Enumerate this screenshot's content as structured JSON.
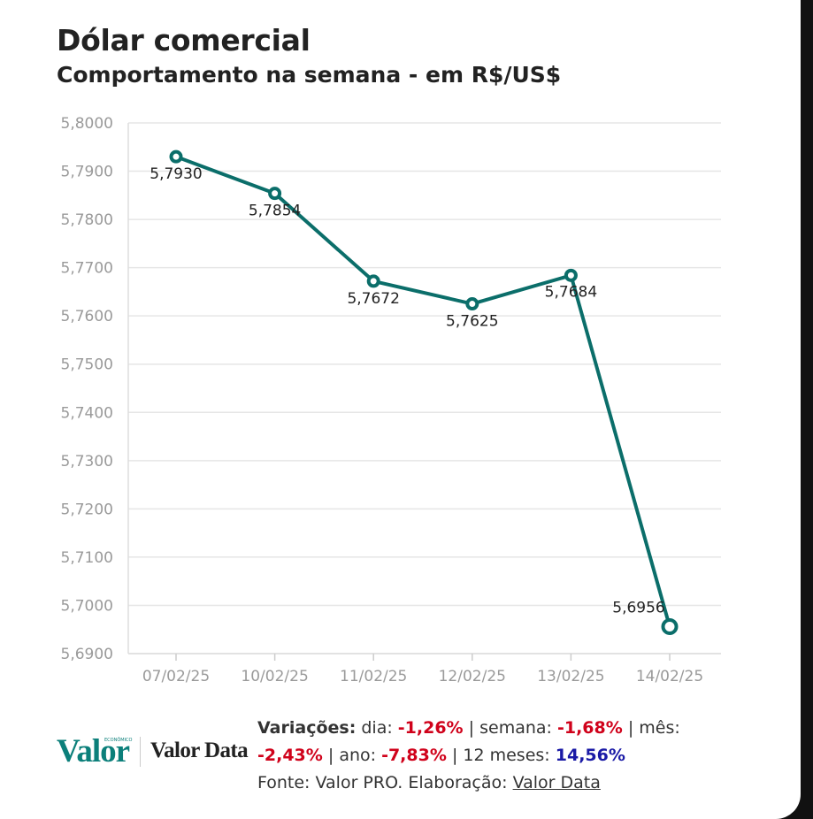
{
  "header": {
    "title": "Dólar comercial",
    "subtitle": "Comportamento na semana - em R$/US$"
  },
  "chart_data": {
    "type": "line",
    "title": "Dólar comercial",
    "subtitle": "Comportamento na semana - em R$/US$",
    "xlabel": "",
    "ylabel": "",
    "categories": [
      "07/02/25",
      "10/02/25",
      "11/02/25",
      "12/02/25",
      "13/02/25",
      "14/02/25"
    ],
    "series": [
      {
        "values": [
          5.793,
          5.7854,
          5.7672,
          5.7625,
          5.7684,
          5.6956
        ],
        "labels": [
          "5,7930",
          "5,7854",
          "5,7672",
          "5,7625",
          "5,7684",
          "5,6956"
        ]
      }
    ],
    "ylim": [
      5.69,
      5.8
    ],
    "yticks": [
      5.8,
      5.79,
      5.78,
      5.77,
      5.76,
      5.75,
      5.74,
      5.73,
      5.72,
      5.71,
      5.7,
      5.69
    ],
    "ytick_labels": [
      "5,8000",
      "5,7900",
      "5,7800",
      "5,7700",
      "5,7600",
      "5,7500",
      "5,7400",
      "5,7300",
      "5,7200",
      "5,7100",
      "5,7000",
      "5,6900"
    ],
    "grid": true,
    "legend": "none",
    "line_color": "#0b6e6a"
  },
  "footer": {
    "variacoes_label": "Variações:",
    "dia_label": "dia:",
    "dia_value": "-1,26%",
    "semana_label": "semana:",
    "semana_value": "-1,68%",
    "mes_label": "mês:",
    "mes_value": "-2,43%",
    "ano_label": "ano:",
    "ano_value": "-7,83%",
    "meses12_label": "12 meses:",
    "meses12_value": "14,56%",
    "separator": "|",
    "fonte_text": "Fonte: Valor PRO. Elaboração:",
    "fonte_link": "Valor Data"
  },
  "logos": {
    "valor": "Valor",
    "valor_small": "ECONÔMICO",
    "valor_data": "Valor Data"
  },
  "colors": {
    "line": "#0b6e6a",
    "negative": "#d0021b",
    "positive": "#1a1aa6",
    "brand": "#0b7f7a"
  }
}
